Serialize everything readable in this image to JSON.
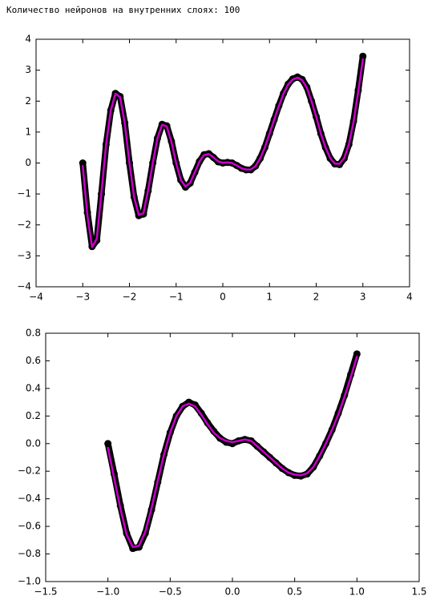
{
  "header": {
    "text": "Количество нейронов на внутренних слоях: 100"
  },
  "chart_data": [
    {
      "type": "line",
      "x": [
        -3.0,
        -2.9,
        -2.8,
        -2.7,
        -2.6,
        -2.5,
        -2.4,
        -2.3,
        -2.2,
        -2.1,
        -2.0,
        -1.9,
        -1.8,
        -1.7,
        -1.6,
        -1.5,
        -1.4,
        -1.3,
        -1.2,
        -1.1,
        -1.0,
        -0.9,
        -0.8,
        -0.7,
        -0.6,
        -0.5,
        -0.4,
        -0.3,
        -0.2,
        -0.1,
        0.0,
        0.1,
        0.2,
        0.3,
        0.4,
        0.5,
        0.6,
        0.7,
        0.8,
        0.9,
        1.0,
        1.1,
        1.2,
        1.3,
        1.4,
        1.5,
        1.6,
        1.7,
        1.8,
        1.9,
        2.0,
        2.1,
        2.2,
        2.3,
        2.4,
        2.5,
        2.6,
        2.7,
        2.8,
        2.9,
        3.0
      ],
      "series": [
        {
          "color": "#000000",
          "marker": "o",
          "values": [
            0.0,
            -1.6,
            -2.7,
            -2.5,
            -1.0,
            0.6,
            1.7,
            2.25,
            2.15,
            1.3,
            0.0,
            -1.1,
            -1.7,
            -1.65,
            -0.9,
            0.0,
            0.8,
            1.25,
            1.2,
            0.7,
            0.0,
            -0.55,
            -0.78,
            -0.65,
            -0.3,
            0.05,
            0.27,
            0.3,
            0.18,
            0.04,
            0.0,
            0.02,
            0.0,
            -0.08,
            -0.17,
            -0.22,
            -0.22,
            -0.1,
            0.15,
            0.5,
            0.95,
            1.4,
            1.85,
            2.25,
            2.55,
            2.72,
            2.78,
            2.7,
            2.45,
            2.0,
            1.5,
            0.95,
            0.5,
            0.15,
            -0.03,
            -0.05,
            0.15,
            0.6,
            1.35,
            2.35,
            3.45
          ]
        },
        {
          "color": "#cc00cc",
          "values": [
            -0.1,
            -1.7,
            -2.72,
            -2.45,
            -0.95,
            0.6,
            1.7,
            2.24,
            2.13,
            1.28,
            0.0,
            -1.1,
            -1.68,
            -1.62,
            -0.88,
            0.0,
            0.8,
            1.24,
            1.18,
            0.68,
            0.0,
            -0.55,
            -0.76,
            -0.64,
            -0.3,
            0.05,
            0.26,
            0.29,
            0.18,
            0.05,
            0.01,
            0.02,
            0.0,
            -0.08,
            -0.17,
            -0.21,
            -0.21,
            -0.1,
            0.15,
            0.5,
            0.95,
            1.4,
            1.84,
            2.24,
            2.54,
            2.7,
            2.76,
            2.68,
            2.43,
            2.0,
            1.5,
            0.95,
            0.5,
            0.16,
            -0.02,
            -0.03,
            0.16,
            0.6,
            1.33,
            2.3,
            3.35
          ]
        }
      ],
      "xlim": [
        -4,
        4
      ],
      "ylim": [
        -4,
        4
      ],
      "xticks": [
        {
          "value": -4,
          "label": "−4"
        },
        {
          "value": -3,
          "label": "−3"
        },
        {
          "value": -2,
          "label": "−2"
        },
        {
          "value": -1,
          "label": "−1"
        },
        0,
        1,
        2,
        3,
        4
      ],
      "yticks": [
        {
          "value": -4,
          "label": "−4"
        },
        {
          "value": -3,
          "label": "−3"
        },
        {
          "value": -2,
          "label": "−2"
        },
        {
          "value": -1,
          "label": "−1"
        },
        0,
        1,
        2,
        3,
        4
      ]
    },
    {
      "type": "line",
      "x": [
        -1.0,
        -0.95,
        -0.9,
        -0.85,
        -0.8,
        -0.75,
        -0.7,
        -0.65,
        -0.6,
        -0.55,
        -0.5,
        -0.45,
        -0.4,
        -0.35,
        -0.3,
        -0.25,
        -0.2,
        -0.15,
        -0.1,
        -0.05,
        0.0,
        0.05,
        0.1,
        0.15,
        0.2,
        0.25,
        0.3,
        0.35,
        0.4,
        0.45,
        0.5,
        0.55,
        0.6,
        0.65,
        0.7,
        0.75,
        0.8,
        0.85,
        0.9,
        0.95,
        1.0
      ],
      "series": [
        {
          "color": "#000000",
          "marker": "o",
          "values": [
            0.0,
            -0.22,
            -0.45,
            -0.65,
            -0.76,
            -0.75,
            -0.65,
            -0.48,
            -0.28,
            -0.08,
            0.08,
            0.2,
            0.27,
            0.3,
            0.28,
            0.22,
            0.15,
            0.09,
            0.04,
            0.01,
            0.0,
            0.02,
            0.03,
            0.02,
            -0.02,
            -0.06,
            -0.1,
            -0.14,
            -0.18,
            -0.21,
            -0.23,
            -0.235,
            -0.22,
            -0.17,
            -0.09,
            0.0,
            0.1,
            0.22,
            0.35,
            0.5,
            0.65
          ]
        },
        {
          "color": "#cc00cc",
          "values": [
            -0.03,
            -0.25,
            -0.47,
            -0.66,
            -0.75,
            -0.74,
            -0.64,
            -0.47,
            -0.27,
            -0.08,
            0.08,
            0.2,
            0.27,
            0.29,
            0.27,
            0.21,
            0.14,
            0.08,
            0.04,
            0.02,
            0.01,
            0.02,
            0.03,
            0.02,
            -0.02,
            -0.06,
            -0.1,
            -0.14,
            -0.18,
            -0.21,
            -0.225,
            -0.23,
            -0.215,
            -0.17,
            -0.09,
            0.0,
            0.1,
            0.21,
            0.34,
            0.48,
            0.63
          ]
        }
      ],
      "xlim": [
        -1.5,
        1.5
      ],
      "ylim": [
        -1.0,
        0.8
      ],
      "xticks": [
        {
          "value": -1.5,
          "label": "−1.5"
        },
        {
          "value": -1.0,
          "label": "−1.0"
        },
        {
          "value": -0.5,
          "label": "−0.5"
        },
        {
          "value": 0.0,
          "label": "0.0"
        },
        0.5,
        {
          "value": 1.0,
          "label": "1.0"
        },
        1.5
      ],
      "yticks": [
        {
          "value": -1.0,
          "label": "−1.0"
        },
        {
          "value": -0.8,
          "label": "−0.8"
        },
        {
          "value": -0.6,
          "label": "−0.6"
        },
        {
          "value": -0.4,
          "label": "−0.4"
        },
        {
          "value": -0.2,
          "label": "−0.2"
        },
        {
          "value": 0.0,
          "label": "0.0"
        },
        0.2,
        0.4,
        0.6,
        0.8
      ]
    }
  ]
}
